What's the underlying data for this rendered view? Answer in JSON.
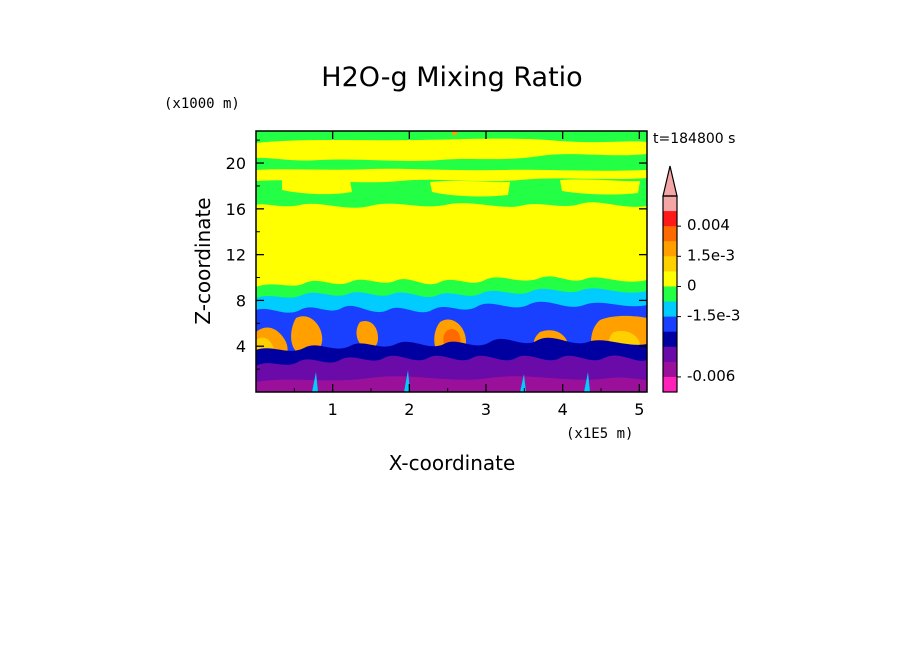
{
  "chart_data": {
    "type": "heatmap",
    "title": "H2O-g Mixing Ratio",
    "xlabel": "X-coordinate",
    "ylabel": "Z-coordinate",
    "x_units_label": "(x1E5 m)",
    "y_units_label": "(x1000 m)",
    "time_label": "t=184800 s",
    "xlim": [
      0.0,
      5.1
    ],
    "ylim": [
      0.0,
      22.8
    ],
    "x_ticks": [
      1,
      2,
      3,
      4,
      5
    ],
    "y_ticks": [
      4,
      8,
      12,
      16,
      20
    ],
    "x_tick_labels": [
      "1",
      "2",
      "3",
      "4",
      "5"
    ],
    "y_tick_labels": [
      "4",
      "8",
      "12",
      "16",
      "20"
    ],
    "colorbar": {
      "levels_top_to_bottom": [
        {
          "color": "#f4a6a6",
          "label": ""
        },
        {
          "color": "#ff1a1a",
          "label": "0.004"
        },
        {
          "color": "#ff6a00",
          "label": ""
        },
        {
          "color": "#ff9f00",
          "label": "1.5e-3"
        },
        {
          "color": "#ffd000",
          "label": ""
        },
        {
          "color": "#ffff00",
          "label": "0"
        },
        {
          "color": "#22ff44",
          "label": ""
        },
        {
          "color": "#00ccff",
          "label": "-1.5e-3"
        },
        {
          "color": "#1a40ff",
          "label": ""
        },
        {
          "color": "#0000a0",
          "label": ""
        },
        {
          "color": "#6a0aa8",
          "label": ""
        },
        {
          "color": "#9a109a",
          "label": "-0.006"
        },
        {
          "color": "#ff22b8",
          "label": ""
        }
      ],
      "extend_top": true
    },
    "field_bands_description": [
      {
        "z_range": [
          18.5,
          22.8
        ],
        "dominant": "yellow/green",
        "value_approx": 0.0
      },
      {
        "z_range": [
          9.0,
          18.5
        ],
        "dominant": "yellow",
        "value_approx": 0.0
      },
      {
        "z_range": [
          6.0,
          9.0
        ],
        "dominant": "green/cyan/blue",
        "value_approx": -0.0015
      },
      {
        "z_range": [
          2.5,
          6.0
        ],
        "dominant": "orange/blue/purple",
        "value_approx": 0.0015
      },
      {
        "z_range": [
          0.0,
          2.5
        ],
        "dominant": "purple",
        "value_approx": -0.006
      }
    ]
  }
}
